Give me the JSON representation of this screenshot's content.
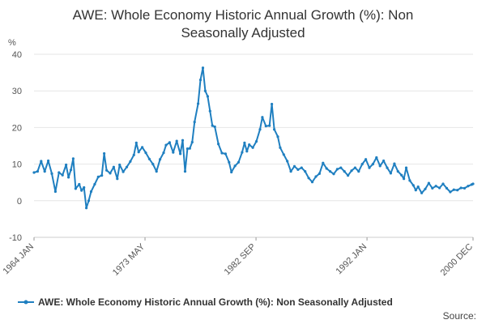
{
  "chart_data": {
    "type": "line",
    "title_lines": [
      "AWE: Whole Economy Historic Annual Growth (%): Non",
      "Seasonally Adjusted"
    ],
    "ylabel": "%",
    "xlabel": "",
    "ylim": [
      -10,
      40
    ],
    "yticks": [
      "-10",
      "0",
      "10",
      "20",
      "30",
      "40"
    ],
    "xrange": [
      1964.0,
      2000.917
    ],
    "xticks": [
      {
        "label": "1964 JAN",
        "x": 1964.0
      },
      {
        "label": "1973 MAY",
        "x": 1973.333
      },
      {
        "label": "1982 SEP",
        "x": 1982.667
      },
      {
        "label": "1992 JAN",
        "x": 1992.0
      },
      {
        "label": "2000 DEC",
        "x": 2000.917
      }
    ],
    "grid": true,
    "legend_position": "bottom",
    "series": [
      {
        "name": "AWE: Whole Economy Historic Annual Growth (%): Non Seasonally Adjusted",
        "color": "#1f7fc0",
        "points": [
          [
            1964.0,
            7.7
          ],
          [
            1964.3,
            8.0
          ],
          [
            1964.6,
            10.8
          ],
          [
            1964.9,
            8.0
          ],
          [
            1965.2,
            10.9
          ],
          [
            1965.5,
            7.4
          ],
          [
            1965.8,
            2.5
          ],
          [
            1966.1,
            7.7
          ],
          [
            1966.4,
            7.0
          ],
          [
            1966.7,
            9.8
          ],
          [
            1966.9,
            6.4
          ],
          [
            1967.1,
            8.4
          ],
          [
            1967.3,
            11.5
          ],
          [
            1967.5,
            3.3
          ],
          [
            1967.8,
            4.5
          ],
          [
            1968.0,
            2.8
          ],
          [
            1968.2,
            3.6
          ],
          [
            1968.4,
            -2.0
          ],
          [
            1968.6,
            0.0
          ],
          [
            1968.8,
            2.5
          ],
          [
            1969.1,
            4.5
          ],
          [
            1969.4,
            6.5
          ],
          [
            1969.7,
            6.9
          ],
          [
            1969.9,
            12.9
          ],
          [
            1970.1,
            8.3
          ],
          [
            1970.4,
            7.5
          ],
          [
            1970.7,
            9.2
          ],
          [
            1971.0,
            6.0
          ],
          [
            1971.2,
            9.8
          ],
          [
            1971.5,
            7.9
          ],
          [
            1971.8,
            9.2
          ],
          [
            1972.1,
            10.7
          ],
          [
            1972.4,
            12.5
          ],
          [
            1972.6,
            15.8
          ],
          [
            1972.8,
            13.3
          ],
          [
            1973.1,
            14.6
          ],
          [
            1973.4,
            13.1
          ],
          [
            1973.7,
            11.4
          ],
          [
            1974.0,
            10.0
          ],
          [
            1974.3,
            8.0
          ],
          [
            1974.6,
            11.3
          ],
          [
            1974.9,
            13.1
          ],
          [
            1975.1,
            15.2
          ],
          [
            1975.4,
            15.9
          ],
          [
            1975.7,
            13.2
          ],
          [
            1976.0,
            16.3
          ],
          [
            1976.3,
            12.8
          ],
          [
            1976.5,
            16.5
          ],
          [
            1976.7,
            8.0
          ],
          [
            1976.9,
            14.2
          ],
          [
            1977.1,
            14.3
          ],
          [
            1977.3,
            16.0
          ],
          [
            1977.5,
            21.5
          ],
          [
            1977.8,
            26.5
          ],
          [
            1978.0,
            33.0
          ],
          [
            1978.2,
            36.3
          ],
          [
            1978.4,
            30.0
          ],
          [
            1978.6,
            28.5
          ],
          [
            1978.8,
            24.5
          ],
          [
            1979.0,
            20.5
          ],
          [
            1979.2,
            20.2
          ],
          [
            1979.5,
            15.5
          ],
          [
            1979.8,
            13.0
          ],
          [
            1980.1,
            12.8
          ],
          [
            1980.4,
            10.5
          ],
          [
            1980.6,
            7.8
          ],
          [
            1980.9,
            9.5
          ],
          [
            1981.2,
            10.5
          ],
          [
            1981.5,
            13.2
          ],
          [
            1981.7,
            15.8
          ],
          [
            1981.9,
            13.5
          ],
          [
            1982.1,
            15.3
          ],
          [
            1982.4,
            14.5
          ],
          [
            1982.7,
            16.2
          ],
          [
            1983.0,
            19.5
          ],
          [
            1983.2,
            22.8
          ],
          [
            1983.5,
            20.4
          ],
          [
            1983.8,
            20.5
          ],
          [
            1984.0,
            26.4
          ],
          [
            1984.2,
            19.5
          ],
          [
            1984.5,
            17.5
          ],
          [
            1984.7,
            14.5
          ],
          [
            1985.0,
            12.6
          ],
          [
            1985.3,
            10.8
          ],
          [
            1985.6,
            8.0
          ],
          [
            1985.9,
            9.4
          ],
          [
            1986.2,
            8.5
          ],
          [
            1986.5,
            9.0
          ],
          [
            1986.8,
            8.0
          ],
          [
            1987.1,
            6.2
          ],
          [
            1987.4,
            5.1
          ],
          [
            1987.7,
            6.6
          ],
          [
            1988.0,
            7.4
          ],
          [
            1988.3,
            10.3
          ],
          [
            1988.6,
            8.8
          ],
          [
            1988.9,
            8.0
          ],
          [
            1989.2,
            7.3
          ],
          [
            1989.5,
            8.6
          ],
          [
            1989.8,
            9.0
          ],
          [
            1990.1,
            8.0
          ],
          [
            1990.4,
            6.9
          ],
          [
            1990.7,
            8.2
          ],
          [
            1991.0,
            9.0
          ],
          [
            1991.3,
            8.0
          ],
          [
            1991.6,
            10.0
          ],
          [
            1991.9,
            11.3
          ],
          [
            1992.2,
            9.0
          ],
          [
            1992.5,
            10.0
          ],
          [
            1992.8,
            11.8
          ],
          [
            1993.1,
            9.5
          ],
          [
            1993.4,
            10.9
          ],
          [
            1993.7,
            9.0
          ],
          [
            1994.0,
            7.5
          ],
          [
            1994.3,
            10.1
          ],
          [
            1994.6,
            8.0
          ],
          [
            1994.9,
            7.0
          ],
          [
            1995.1,
            6.0
          ],
          [
            1995.3,
            9.0
          ],
          [
            1995.6,
            5.5
          ],
          [
            1995.9,
            4.2
          ],
          [
            1996.1,
            2.9
          ],
          [
            1996.3,
            3.8
          ],
          [
            1996.6,
            2.1
          ],
          [
            1996.9,
            3.2
          ],
          [
            1997.2,
            4.8
          ],
          [
            1997.5,
            3.4
          ],
          [
            1997.8,
            4.0
          ],
          [
            1998.1,
            3.5
          ],
          [
            1998.4,
            4.6
          ],
          [
            1998.7,
            3.4
          ],
          [
            1999.0,
            2.4
          ],
          [
            1999.3,
            3.0
          ],
          [
            1999.6,
            2.9
          ],
          [
            1999.9,
            3.5
          ],
          [
            2000.2,
            3.4
          ],
          [
            2000.5,
            4.0
          ],
          [
            2000.8,
            4.4
          ],
          [
            2000.917,
            4.6
          ]
        ]
      }
    ]
  },
  "source_label": "Source:"
}
